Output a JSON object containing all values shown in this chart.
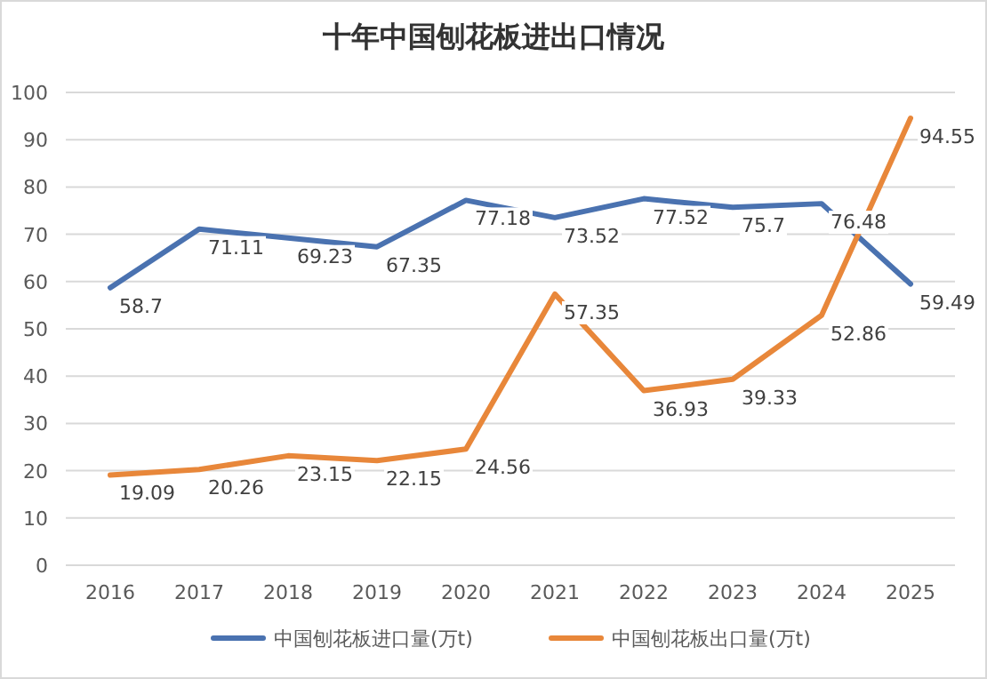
{
  "chart_data": {
    "type": "line",
    "title": "十年中国刨花板进出口情况",
    "categories": [
      "2016",
      "2017",
      "2018",
      "2019",
      "2020",
      "2021",
      "2022",
      "2023",
      "2024",
      "2025"
    ],
    "series": [
      {
        "name": "中国刨花板进口量(万t)",
        "color": "#4a72b0",
        "values": [
          58.7,
          71.11,
          69.23,
          67.35,
          77.18,
          73.52,
          77.52,
          75.7,
          76.48,
          59.49
        ]
      },
      {
        "name": "中国刨花板出口量(万t)",
        "color": "#e8873a",
        "values": [
          19.09,
          20.26,
          23.15,
          22.15,
          24.56,
          57.35,
          36.93,
          39.33,
          52.86,
          94.55
        ]
      }
    ],
    "ylim": [
      0,
      100
    ],
    "yticks": [
      0,
      10,
      20,
      30,
      40,
      50,
      60,
      70,
      80,
      90,
      100
    ],
    "grid": "y",
    "legend": "bottom",
    "data_labels": true,
    "marker": "none",
    "line_style": "solid"
  }
}
